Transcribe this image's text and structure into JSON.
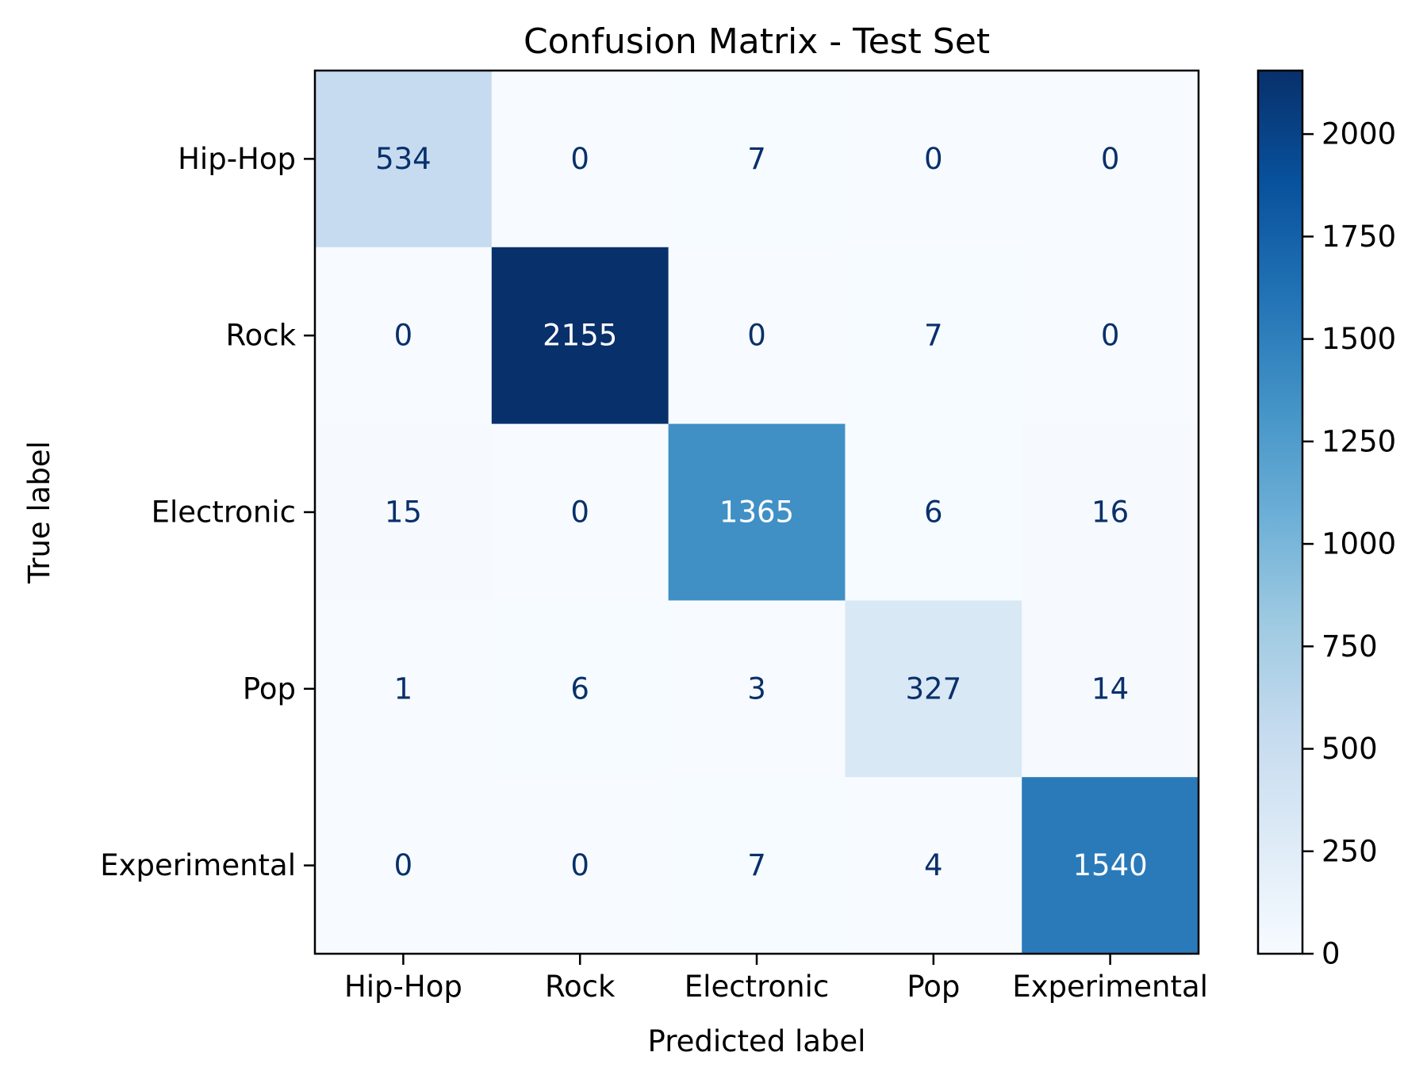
{
  "chart_data": {
    "type": "heatmap",
    "title": "Confusion Matrix - Test Set",
    "xlabel": "Predicted label",
    "ylabel": "True label",
    "x_categories": [
      "Hip-Hop",
      "Rock",
      "Electronic",
      "Pop",
      "Experimental"
    ],
    "y_categories": [
      "Hip-Hop",
      "Rock",
      "Electronic",
      "Pop",
      "Experimental"
    ],
    "values": [
      [
        534,
        0,
        7,
        0,
        0
      ],
      [
        0,
        2155,
        0,
        7,
        0
      ],
      [
        15,
        0,
        1365,
        6,
        16
      ],
      [
        1,
        6,
        3,
        327,
        14
      ],
      [
        0,
        0,
        7,
        4,
        1540
      ]
    ],
    "colormap": "Blues",
    "vmin": 0,
    "vmax": 2155,
    "colorbar_ticks": [
      0,
      250,
      500,
      750,
      1000,
      1250,
      1500,
      1750,
      2000
    ],
    "grid": false,
    "colors": {
      "text_light": "#ffffff",
      "text_dark": "#08306b"
    }
  }
}
